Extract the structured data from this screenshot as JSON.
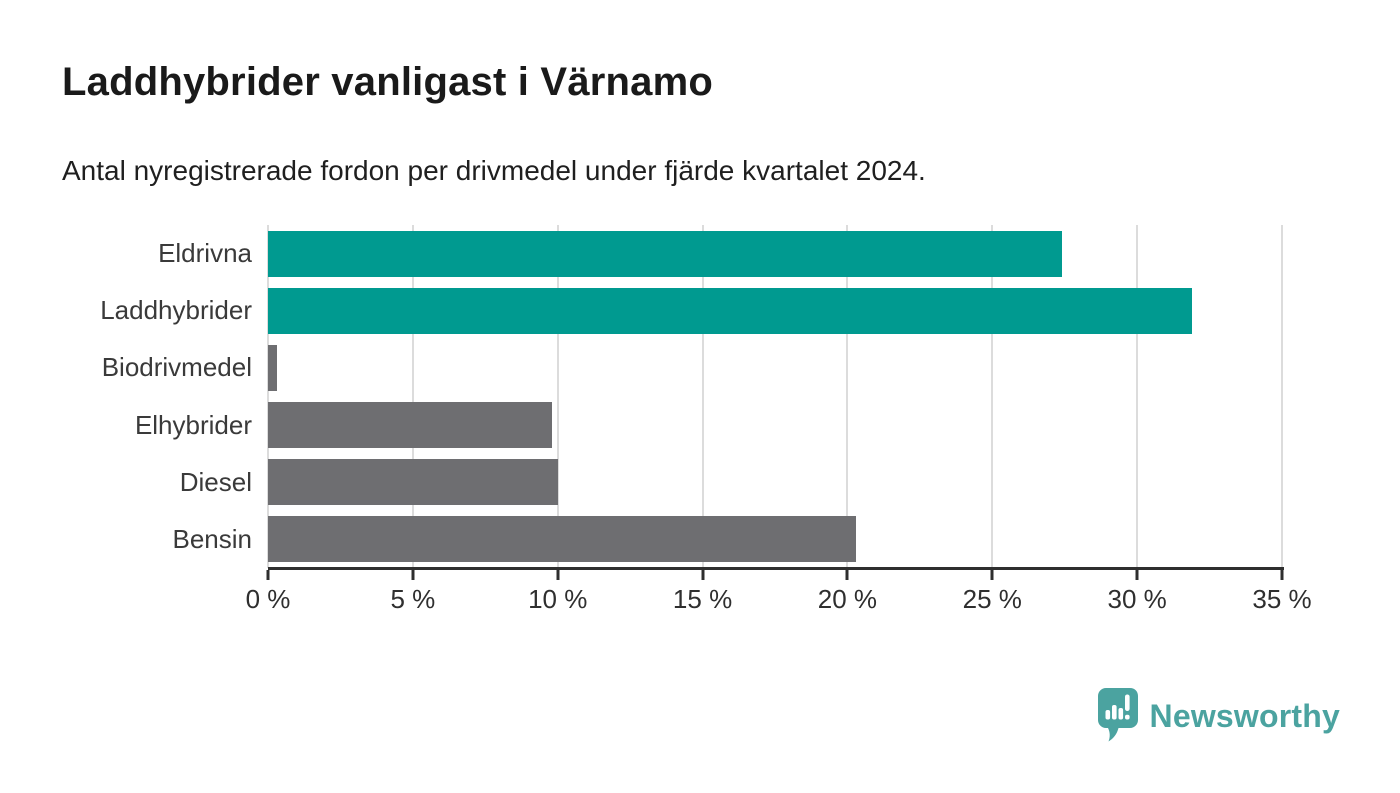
{
  "header": {
    "title": "Laddhybrider vanligast i Värnamo",
    "subtitle": "Antal nyregistrerade fordon per drivmedel under fjärde kvartalet 2024."
  },
  "chart_data": {
    "type": "bar",
    "orientation": "horizontal",
    "title": "Laddhybrider vanligast i Värnamo",
    "subtitle": "Antal nyregistrerade fordon per drivmedel under fjärde kvartalet 2024.",
    "categories": [
      "Eldrivna",
      "Laddhybrider",
      "Biodrivmedel",
      "Elhybrider",
      "Diesel",
      "Bensin"
    ],
    "values": [
      27.4,
      31.9,
      0.3,
      9.8,
      10.0,
      20.3
    ],
    "unit": "%",
    "bar_colors": [
      "#009a90",
      "#009a90",
      "#6e6e71",
      "#6e6e71",
      "#6e6e71",
      "#6e6e71"
    ],
    "highlight_color": "#009a90",
    "base_color": "#6e6e71",
    "xlabel": "",
    "ylabel": "",
    "xlim": [
      0,
      35
    ],
    "x_ticks": [
      0,
      5,
      10,
      15,
      20,
      25,
      30,
      35
    ],
    "x_tick_labels": [
      "0 %",
      "5 %",
      "10 %",
      "15 %",
      "20 %",
      "25 %",
      "30 %",
      "35 %"
    ],
    "grid": true,
    "gridline_color": "#dcdcdc",
    "legend": "none"
  },
  "footer": {
    "brand": "Newsworthy",
    "brand_color": "#4ba3a0",
    "logo_icon": "speech-bubble-bar-chart-exclamation"
  }
}
